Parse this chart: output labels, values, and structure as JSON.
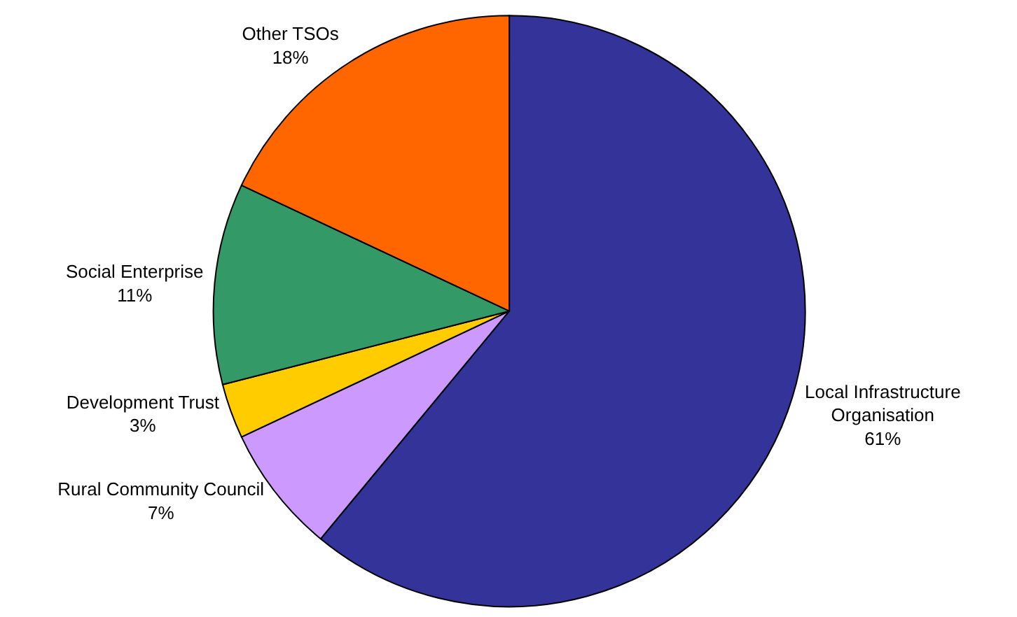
{
  "chart_data": {
    "type": "pie",
    "categories": [
      "Local Infrastructure Organisation",
      "Rural Community Council",
      "Development Trust",
      "Social Enterprise",
      "Other TSOs"
    ],
    "values": [
      61,
      7,
      3,
      11,
      18
    ],
    "value_labels": [
      "61%",
      "7%",
      "3%",
      "11%",
      "18%"
    ],
    "colors": [
      "#333399",
      "#cc99ff",
      "#ffcc00",
      "#339966",
      "#ff6600"
    ],
    "legend": false
  }
}
